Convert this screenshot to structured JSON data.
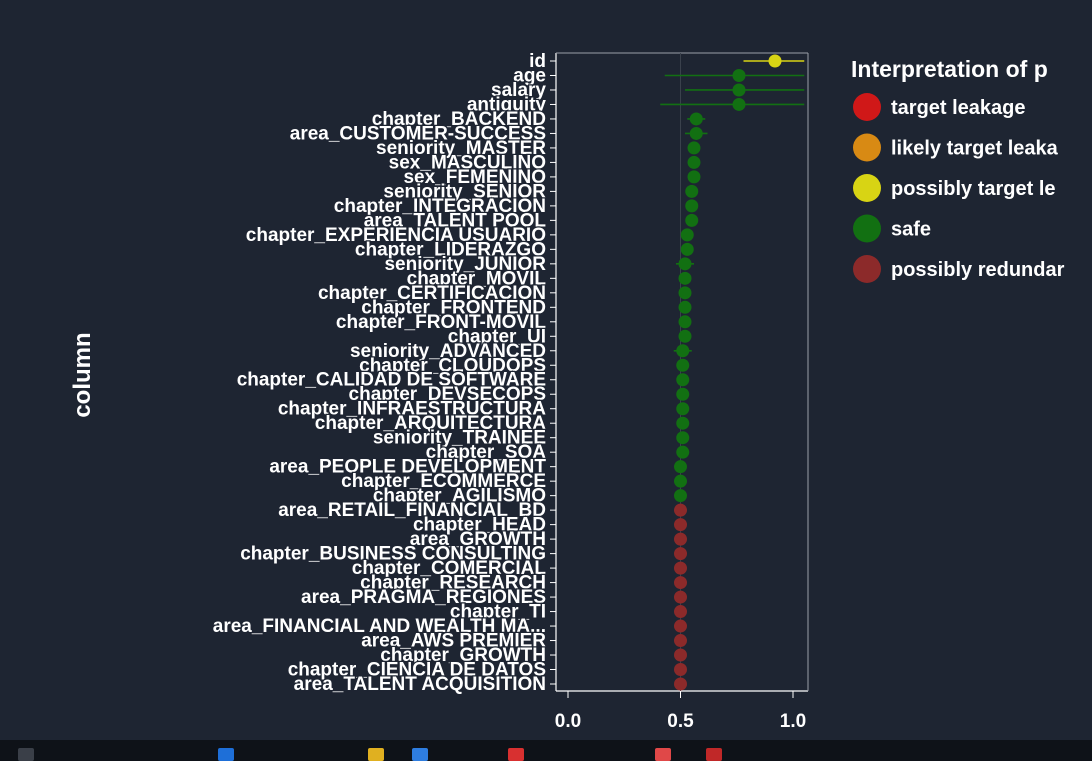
{
  "chart_data": {
    "type": "scatter",
    "ylabel": "column",
    "xlabel": "",
    "xlim": [
      -0.05,
      1.05
    ],
    "xticks": [
      "0.0",
      "0.5",
      "1.0"
    ],
    "xtick_values": [
      0,
      0.5,
      1
    ],
    "grid": false,
    "legend_title": "Interpretation of p",
    "legend_position": "right",
    "legend": [
      {
        "label": "target leakage",
        "color": "#d01818"
      },
      {
        "label": "likely target leaka",
        "color": "#d88a14"
      },
      {
        "label": "possibly target le",
        "color": "#d8d414"
      },
      {
        "label": "safe",
        "color": "#127012"
      },
      {
        "label": "possibly redundar",
        "color": "#8c2a2a"
      }
    ],
    "rows": [
      {
        "label": "id",
        "value": 0.92,
        "err": [
          0.78,
          1.05
        ],
        "color": "#d8d414"
      },
      {
        "label": "age",
        "value": 0.76,
        "err": [
          0.43,
          1.05
        ],
        "color": "#127012"
      },
      {
        "label": "salary",
        "value": 0.76,
        "err": [
          0.52,
          1.05
        ],
        "color": "#127012"
      },
      {
        "label": "antiquity",
        "value": 0.76,
        "err": [
          0.41,
          1.05
        ],
        "color": "#127012"
      },
      {
        "label": "chapter_BACKEND",
        "value": 0.57,
        "err": [
          0.53,
          0.61
        ],
        "color": "#127012"
      },
      {
        "label": "area_CUSTOMER-SUCCESS",
        "value": 0.57,
        "err": [
          0.52,
          0.62
        ],
        "color": "#127012"
      },
      {
        "label": "seniority_MASTER",
        "value": 0.56,
        "err": [
          0.54,
          0.58
        ],
        "color": "#127012"
      },
      {
        "label": "sex_MASCULINO",
        "value": 0.56,
        "err": [
          0.54,
          0.58
        ],
        "color": "#127012"
      },
      {
        "label": "sex_FEMENINO",
        "value": 0.56,
        "err": [
          0.54,
          0.58
        ],
        "color": "#127012"
      },
      {
        "label": "seniority_SENIOR",
        "value": 0.55,
        "err": [
          0.53,
          0.57
        ],
        "color": "#127012"
      },
      {
        "label": "chapter_INTEGRACION",
        "value": 0.55,
        "err": [
          0.53,
          0.57
        ],
        "color": "#127012"
      },
      {
        "label": "area_TALENT POOL",
        "value": 0.55,
        "err": [
          0.53,
          0.57
        ],
        "color": "#127012"
      },
      {
        "label": "chapter_EXPERIENCIA USUARIO",
        "value": 0.53,
        "err": [
          0.51,
          0.55
        ],
        "color": "#127012"
      },
      {
        "label": "chapter_LIDERAZGO",
        "value": 0.53,
        "err": [
          0.51,
          0.55
        ],
        "color": "#127012"
      },
      {
        "label": "seniority_JUNIOR",
        "value": 0.52,
        "err": [
          0.48,
          0.56
        ],
        "color": "#127012"
      },
      {
        "label": "chapter_MOVIL",
        "value": 0.52,
        "err": [
          0.5,
          0.54
        ],
        "color": "#127012"
      },
      {
        "label": "chapter_CERTIFICACION",
        "value": 0.52,
        "err": [
          0.5,
          0.54
        ],
        "color": "#127012"
      },
      {
        "label": "chapter_FRONTEND",
        "value": 0.52,
        "err": [
          0.5,
          0.54
        ],
        "color": "#127012"
      },
      {
        "label": "chapter_FRONT-MOVIL",
        "value": 0.52,
        "err": [
          0.5,
          0.54
        ],
        "color": "#127012"
      },
      {
        "label": "chapter_UI",
        "value": 0.52,
        "err": [
          0.5,
          0.54
        ],
        "color": "#127012"
      },
      {
        "label": "seniority_ADVANCED",
        "value": 0.51,
        "err": [
          0.47,
          0.55
        ],
        "color": "#127012"
      },
      {
        "label": "chapter_CLOUDOPS",
        "value": 0.51,
        "err": [
          0.49,
          0.53
        ],
        "color": "#127012"
      },
      {
        "label": "chapter_CALIDAD DE SOFTWARE",
        "value": 0.51,
        "err": [
          0.49,
          0.53
        ],
        "color": "#127012"
      },
      {
        "label": "chapter_DEVSECOPS",
        "value": 0.51,
        "err": [
          0.49,
          0.53
        ],
        "color": "#127012"
      },
      {
        "label": "chapter_INFRAESTRUCTURA",
        "value": 0.51,
        "err": [
          0.49,
          0.53
        ],
        "color": "#127012"
      },
      {
        "label": "chapter_ARQUITECTURA",
        "value": 0.51,
        "err": [
          0.49,
          0.53
        ],
        "color": "#127012"
      },
      {
        "label": "seniority_TRAINEE",
        "value": 0.51,
        "err": [
          0.49,
          0.53
        ],
        "color": "#127012"
      },
      {
        "label": "chapter_SOA",
        "value": 0.51,
        "err": [
          0.49,
          0.53
        ],
        "color": "#127012"
      },
      {
        "label": "area_PEOPLE DEVELOPMENT",
        "value": 0.5,
        "err": [
          0.48,
          0.52
        ],
        "color": "#127012"
      },
      {
        "label": "chapter_ECOMMERCE",
        "value": 0.5,
        "err": [
          0.48,
          0.52
        ],
        "color": "#127012"
      },
      {
        "label": "chapter_AGILISMO",
        "value": 0.5,
        "err": [
          0.48,
          0.52
        ],
        "color": "#127012"
      },
      {
        "label": "area_RETAIL_FINANCIAL_BD",
        "value": 0.5,
        "err": [
          0.5,
          0.5
        ],
        "color": "#8c2a2a"
      },
      {
        "label": "chapter_HEAD",
        "value": 0.5,
        "err": [
          0.5,
          0.5
        ],
        "color": "#8c2a2a"
      },
      {
        "label": "area_GROWTH",
        "value": 0.5,
        "err": [
          0.5,
          0.5
        ],
        "color": "#8c2a2a"
      },
      {
        "label": "chapter_BUSINESS CONSULTING",
        "value": 0.5,
        "err": [
          0.5,
          0.5
        ],
        "color": "#8c2a2a"
      },
      {
        "label": "chapter_COMERCIAL",
        "value": 0.5,
        "err": [
          0.5,
          0.5
        ],
        "color": "#8c2a2a"
      },
      {
        "label": "chapter_RESEARCH",
        "value": 0.5,
        "err": [
          0.5,
          0.5
        ],
        "color": "#8c2a2a"
      },
      {
        "label": "area_PRAGMA_REGIONES",
        "value": 0.5,
        "err": [
          0.5,
          0.5
        ],
        "color": "#8c2a2a"
      },
      {
        "label": "chapter_TI",
        "value": 0.5,
        "err": [
          0.5,
          0.5
        ],
        "color": "#8c2a2a"
      },
      {
        "label": "area_FINANCIAL AND WEALTH MA...",
        "value": 0.5,
        "err": [
          0.5,
          0.5
        ],
        "color": "#8c2a2a"
      },
      {
        "label": "area_AWS PREMIER",
        "value": 0.5,
        "err": [
          0.5,
          0.5
        ],
        "color": "#8c2a2a"
      },
      {
        "label": "chapter_GROWTH",
        "value": 0.5,
        "err": [
          0.5,
          0.5
        ],
        "color": "#8c2a2a"
      },
      {
        "label": "chapter_CIENCIA DE DATOS",
        "value": 0.5,
        "err": [
          0.5,
          0.5
        ],
        "color": "#8c2a2a"
      },
      {
        "label": "area_TALENT ACQUISITION",
        "value": 0.5,
        "err": [
          0.5,
          0.5
        ],
        "color": "#8c2a2a"
      }
    ]
  },
  "taskbar": {
    "icon_colors": [
      "#3a3f48",
      "#1e6fd8",
      "#e0b020",
      "#2e7de0",
      "#d83030",
      "#e04848",
      "#c02828"
    ]
  }
}
